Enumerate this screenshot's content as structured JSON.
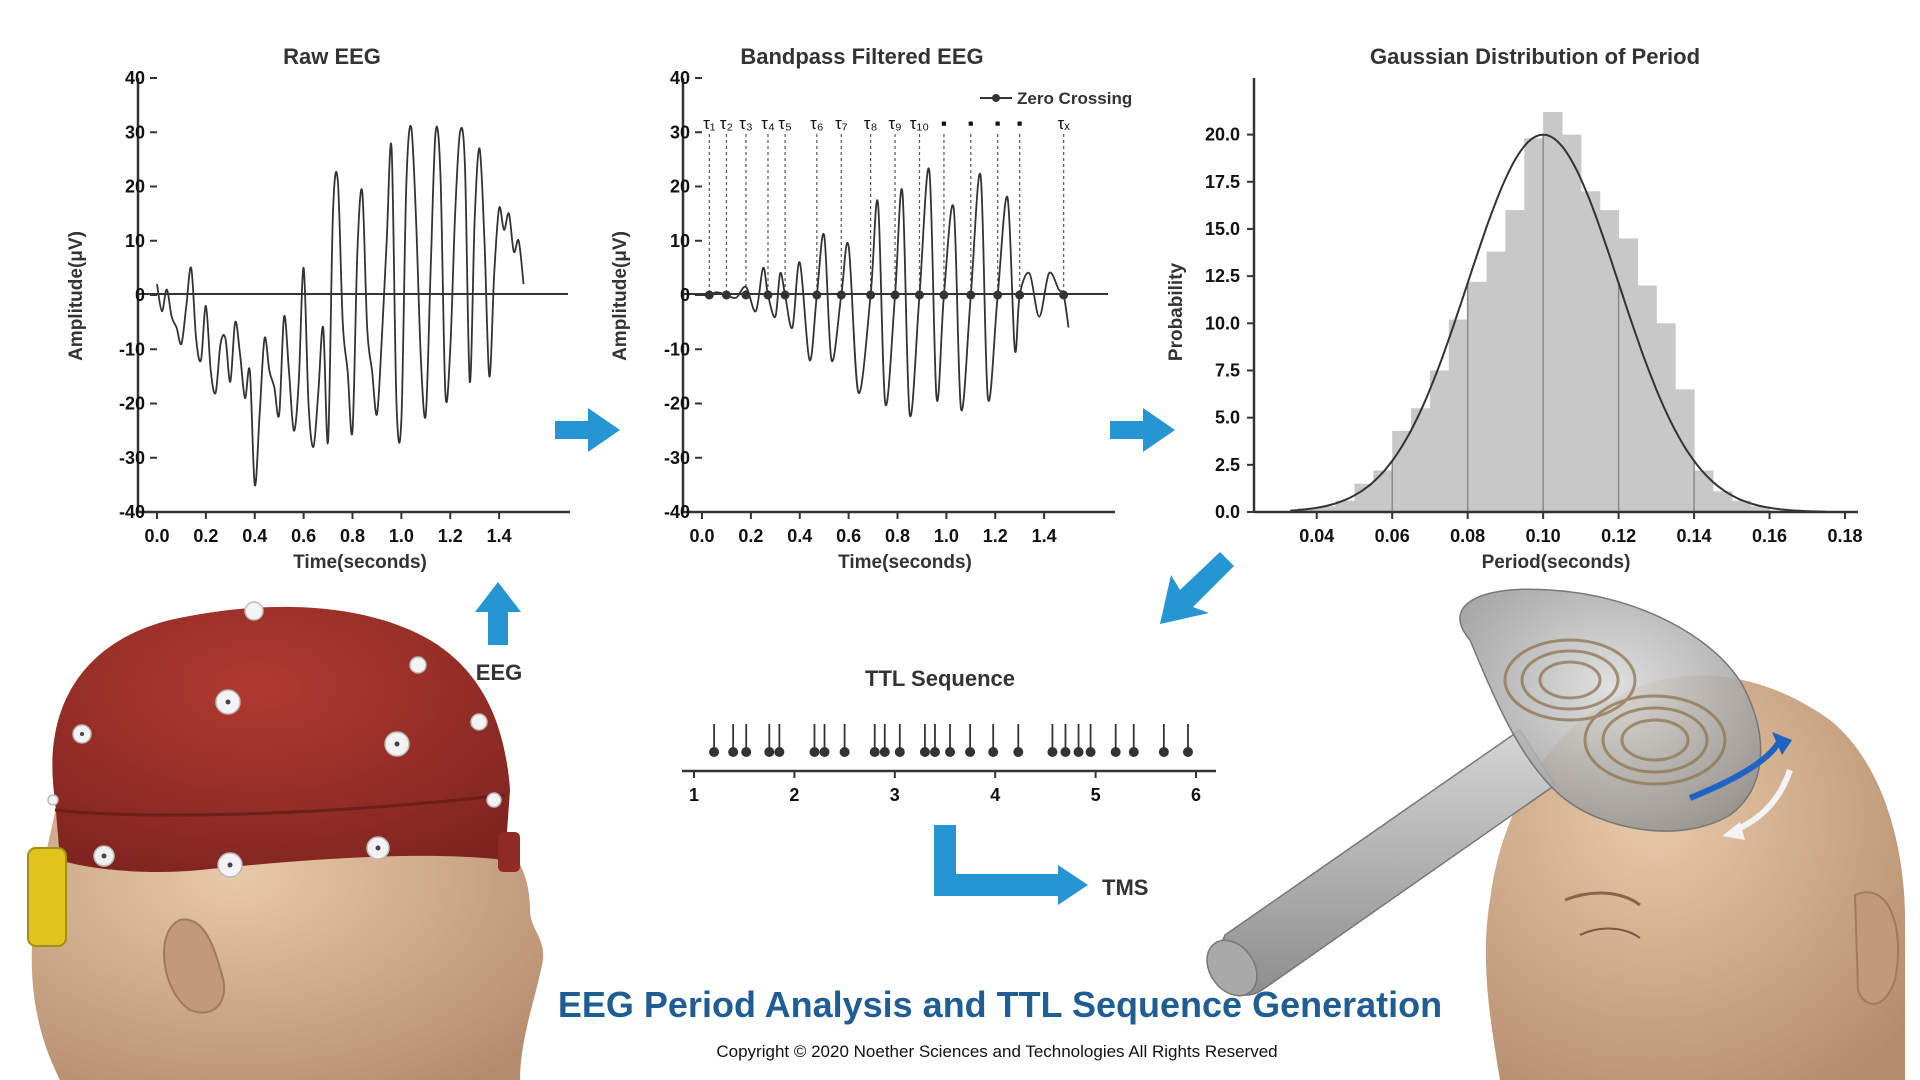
{
  "footer": {
    "title": "EEG Period Analysis and TTL Sequence Generation",
    "copyright": "Copyright © 2020 Noether Sciences and Technologies   All Rights Reserved"
  },
  "flow_labels": {
    "eeg": "EEG",
    "tms": "TMS"
  },
  "colors": {
    "accent_arrow": "#2596d1",
    "title_blue": "#1f5d93",
    "histogram_bar": "#c8c8c8",
    "cap_red": "#9b2f28"
  },
  "icons": {
    "cap_figure": "eeg-cap-head-illustration",
    "tms_figure": "tms-coil-head-illustration"
  },
  "chart_data": [
    {
      "id": "raw",
      "type": "line",
      "title": "Raw EEG",
      "xlabel": "Time(seconds)",
      "ylabel": "Amplitude(μV)",
      "xlim": [
        0,
        1.6
      ],
      "ylim": [
        -40,
        40
      ],
      "xticks": [
        "0.0",
        "0.2",
        "0.4",
        "0.6",
        "0.8",
        "1.0",
        "1.2",
        "1.4"
      ],
      "yticks": [
        "40",
        "30",
        "20",
        "10",
        "0",
        "-10",
        "-20",
        "-30",
        "-40"
      ],
      "series": [
        {
          "x": [
            0.0,
            0.02,
            0.04,
            0.06,
            0.08,
            0.1,
            0.12,
            0.14,
            0.16,
            0.18,
            0.2,
            0.22,
            0.24,
            0.26,
            0.28,
            0.3,
            0.32,
            0.34,
            0.36,
            0.38,
            0.4,
            0.42,
            0.44,
            0.46,
            0.48,
            0.5,
            0.52,
            0.54,
            0.56,
            0.58,
            0.6,
            0.62,
            0.64,
            0.66,
            0.68,
            0.7,
            0.72,
            0.74,
            0.76,
            0.78,
            0.8,
            0.82,
            0.84,
            0.86,
            0.88,
            0.9,
            0.92,
            0.94,
            0.96,
            0.98,
            1.0,
            1.02,
            1.04,
            1.06,
            1.08,
            1.1,
            1.12,
            1.14,
            1.16,
            1.18,
            1.2,
            1.22,
            1.24,
            1.26,
            1.28,
            1.3,
            1.32,
            1.34,
            1.36,
            1.38,
            1.4,
            1.42,
            1.44,
            1.46,
            1.48,
            1.5
          ],
          "y": [
            2,
            -3,
            1,
            -4,
            -6,
            -9,
            -2,
            5,
            -8,
            -12,
            -2,
            -14,
            -18,
            -9,
            -8,
            -16,
            -5,
            -11,
            -19,
            -14,
            -35,
            -22,
            -8,
            -14,
            -17,
            -22,
            -4,
            -14,
            -25,
            -16,
            5,
            -20,
            -28,
            -18,
            -6,
            -27,
            15,
            21,
            -5,
            -14,
            -25,
            8,
            19,
            -6,
            -14,
            -22,
            -8,
            10,
            27,
            -20,
            -23,
            20,
            31,
            14,
            -12,
            -22,
            5,
            30,
            22,
            -18,
            -10,
            15,
            30,
            24,
            -16,
            14,
            27,
            10,
            -15,
            4,
            16,
            12,
            15,
            8,
            10,
            2
          ]
        }
      ]
    },
    {
      "id": "filtered",
      "type": "line",
      "title": "Bandpass Filtered EEG",
      "xlabel": "Time(seconds)",
      "ylabel": "Amplitude(μV)",
      "legend": "Zero Crossing",
      "legend_position": "top-right",
      "xlim": [
        0,
        1.6
      ],
      "ylim": [
        -40,
        40
      ],
      "xticks": [
        "0.0",
        "0.2",
        "0.4",
        "0.6",
        "0.8",
        "1.0",
        "1.2",
        "1.4"
      ],
      "yticks": [
        "40",
        "30",
        "20",
        "10",
        "0",
        "-10",
        "-20",
        "-30",
        "-40"
      ],
      "zero_crossings_x": [
        0.03,
        0.1,
        0.18,
        0.27,
        0.34,
        0.47,
        0.57,
        0.69,
        0.79,
        0.89,
        0.99,
        1.1,
        1.21,
        1.3,
        1.48
      ],
      "tau_labels": [
        {
          "x": 0.03,
          "label": "τ₁"
        },
        {
          "x": 0.1,
          "label": "τ₂"
        },
        {
          "x": 0.18,
          "label": "τ₃"
        },
        {
          "x": 0.27,
          "label": "τ₄"
        },
        {
          "x": 0.34,
          "label": "τ₅"
        },
        {
          "x": 0.47,
          "label": "τ₆"
        },
        {
          "x": 0.57,
          "label": "τ₇"
        },
        {
          "x": 0.69,
          "label": "τ₈"
        },
        {
          "x": 0.79,
          "label": "τ₉"
        },
        {
          "x": 0.89,
          "label": "τ₁₀"
        },
        {
          "x": 0.99,
          "label": "▪"
        },
        {
          "x": 1.1,
          "label": "▪"
        },
        {
          "x": 1.21,
          "label": "▪"
        },
        {
          "x": 1.3,
          "label": "▪"
        },
        {
          "x": 1.48,
          "label": "τₓ"
        }
      ],
      "series": [
        {
          "x": [
            0.0,
            0.03,
            0.06,
            0.1,
            0.14,
            0.18,
            0.22,
            0.25,
            0.27,
            0.3,
            0.32,
            0.34,
            0.37,
            0.4,
            0.44,
            0.47,
            0.5,
            0.53,
            0.57,
            0.6,
            0.64,
            0.69,
            0.72,
            0.75,
            0.79,
            0.82,
            0.85,
            0.89,
            0.93,
            0.96,
            0.99,
            1.03,
            1.06,
            1.1,
            1.14,
            1.17,
            1.21,
            1.25,
            1.28,
            1.3,
            1.34,
            1.38,
            1.42,
            1.46,
            1.48,
            1.5
          ],
          "y": [
            0,
            0,
            0.5,
            0,
            -0.5,
            1.5,
            -3,
            5,
            0,
            -4,
            4,
            0,
            -6,
            6,
            -12,
            0,
            11,
            -12,
            0,
            9,
            -18,
            0,
            17,
            -20,
            0,
            19,
            -22,
            0,
            23,
            -19,
            0,
            16,
            -21,
            0,
            22,
            -19,
            0,
            18,
            -10,
            0,
            4,
            -4,
            4,
            1,
            0,
            -6
          ]
        }
      ]
    },
    {
      "id": "hist",
      "type": "bar",
      "title": "Gaussian Distribution of Period",
      "xlabel": "Period(seconds)",
      "ylabel": "Probability",
      "xlim": [
        0.03,
        0.18
      ],
      "ylim": [
        0,
        23
      ],
      "xticks": [
        "0.04",
        "0.06",
        "0.08",
        "0.10",
        "0.12",
        "0.14",
        "0.16",
        "0.18"
      ],
      "yticks": [
        "0.0",
        "2.5",
        "5.0",
        "7.5",
        "10.0",
        "12.5",
        "15.0",
        "17.5",
        "20.0"
      ],
      "bin_start": 0.035,
      "bin_width": 0.005,
      "values": [
        0.2,
        0.3,
        0.6,
        1.5,
        2.2,
        4.3,
        5.5,
        7.5,
        10.2,
        12.2,
        13.8,
        16.0,
        19.8,
        21.2,
        20.0,
        17.0,
        16.0,
        14.5,
        12.0,
        10.0,
        6.5,
        2.2,
        1.1,
        0.6,
        0.3
      ],
      "curve": {
        "type": "gaussian",
        "mean": 0.1,
        "sd": 0.02,
        "peak": 20.0
      }
    },
    {
      "id": "ttl",
      "type": "scatter",
      "title": "TTL Sequence",
      "xlim": [
        0.9,
        6.1
      ],
      "xticks": [
        "1",
        "2",
        "3",
        "4",
        "5",
        "6"
      ],
      "pulses_x": [
        1.2,
        1.39,
        1.52,
        1.75,
        1.85,
        2.2,
        2.3,
        2.5,
        2.8,
        2.9,
        3.05,
        3.3,
        3.4,
        3.55,
        3.75,
        3.98,
        4.23,
        4.57,
        4.7,
        4.83,
        4.95,
        5.2,
        5.38,
        5.68,
        5.92
      ]
    }
  ]
}
